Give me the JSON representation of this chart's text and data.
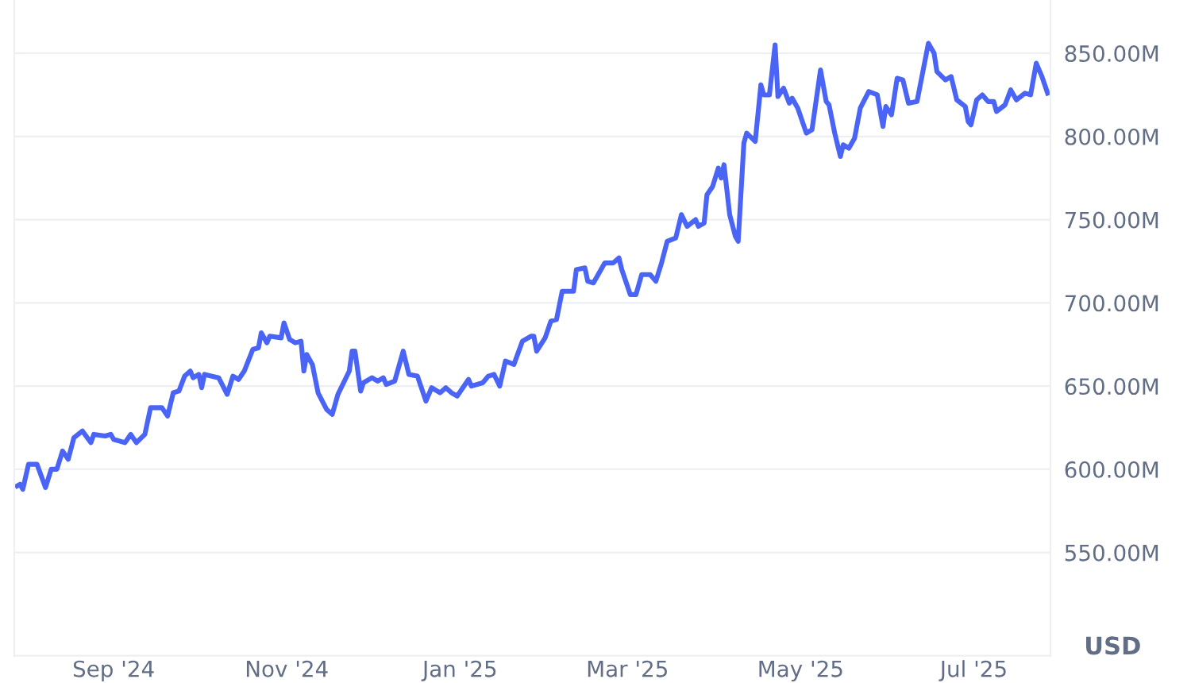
{
  "chart_data": {
    "type": "line",
    "ylabel": "USD",
    "xlim": [
      "2024-07-28",
      "2025-07-28"
    ],
    "xticks": [
      {
        "value": "2024-09-01",
        "label": "Sep '24"
      },
      {
        "value": "2024-11-01",
        "label": "Nov '24"
      },
      {
        "value": "2025-01-01",
        "label": "Jan '25"
      },
      {
        "value": "2025-03-01",
        "label": "Mar '25"
      },
      {
        "value": "2025-05-01",
        "label": "May '25"
      },
      {
        "value": "2025-07-01",
        "label": "Jul '25"
      }
    ],
    "ylim": [
      488,
      882
    ],
    "yticks": [
      {
        "value": 550,
        "label": "550.00M"
      },
      {
        "value": 600,
        "label": "600.00M"
      },
      {
        "value": 650,
        "label": "650.00M"
      },
      {
        "value": 700,
        "label": "700.00M"
      },
      {
        "value": 750,
        "label": "750.00M"
      },
      {
        "value": 800,
        "label": "800.00M"
      },
      {
        "value": 850,
        "label": "850.00M"
      }
    ],
    "grid": "y",
    "marker": "none",
    "line_style": "solid",
    "x": [
      "2024-07-29",
      "2024-07-30",
      "2024-07-31",
      "2024-08-02",
      "2024-08-05",
      "2024-08-08",
      "2024-08-10",
      "2024-08-12",
      "2024-08-14",
      "2024-08-16",
      "2024-08-18",
      "2024-08-21",
      "2024-08-24",
      "2024-08-25",
      "2024-08-29",
      "2024-08-31",
      "2024-09-01",
      "2024-09-05",
      "2024-09-07",
      "2024-09-09",
      "2024-09-12",
      "2024-09-14",
      "2024-09-18",
      "2024-09-20",
      "2024-09-22",
      "2024-09-24",
      "2024-09-26",
      "2024-09-28",
      "2024-09-29",
      "2024-10-01",
      "2024-10-02",
      "2024-10-03",
      "2024-10-08",
      "2024-10-11",
      "2024-10-13",
      "2024-10-15",
      "2024-10-17",
      "2024-10-20",
      "2024-10-22",
      "2024-10-23",
      "2024-10-25",
      "2024-10-26",
      "2024-10-30",
      "2024-10-31",
      "2024-11-02",
      "2024-11-04",
      "2024-11-06",
      "2024-11-07",
      "2024-11-08",
      "2024-11-10",
      "2024-11-12",
      "2024-11-15",
      "2024-11-17",
      "2024-11-19",
      "2024-11-23",
      "2024-11-24",
      "2024-11-25",
      "2024-11-27",
      "2024-11-28",
      "2024-12-01",
      "2024-12-03",
      "2024-12-05",
      "2024-12-06",
      "2024-12-09",
      "2024-12-12",
      "2024-12-14",
      "2024-12-17",
      "2024-12-20",
      "2024-12-22",
      "2024-12-25",
      "2024-12-27",
      "2024-12-29",
      "2024-12-31",
      "2025-01-04",
      "2025-01-05",
      "2025-01-09",
      "2025-01-11",
      "2025-01-13",
      "2025-01-15",
      "2025-01-17",
      "2025-01-20",
      "2025-01-23",
      "2025-01-26",
      "2025-01-27",
      "2025-01-28",
      "2025-01-31",
      "2025-02-02",
      "2025-02-04",
      "2025-02-06",
      "2025-02-10",
      "2025-02-11",
      "2025-02-14",
      "2025-02-15",
      "2025-02-17",
      "2025-02-21",
      "2025-02-24",
      "2025-02-26",
      "2025-02-27",
      "2025-03-02",
      "2025-03-04",
      "2025-03-06",
      "2025-03-09",
      "2025-03-11",
      "2025-03-13",
      "2025-03-15",
      "2025-03-18",
      "2025-03-20",
      "2025-03-22",
      "2025-03-25",
      "2025-03-26",
      "2025-03-28",
      "2025-03-29",
      "2025-03-31",
      "2025-04-02",
      "2025-04-03",
      "2025-04-04",
      "2025-04-06",
      "2025-04-08",
      "2025-04-09",
      "2025-04-11",
      "2025-04-12",
      "2025-04-15",
      "2025-04-17",
      "2025-04-18",
      "2025-04-20",
      "2025-04-22",
      "2025-04-23",
      "2025-04-25",
      "2025-04-27",
      "2025-04-28",
      "2025-04-30",
      "2025-05-03",
      "2025-05-05",
      "2025-05-08",
      "2025-05-10",
      "2025-05-11",
      "2025-05-13",
      "2025-05-15",
      "2025-05-16",
      "2025-05-18",
      "2025-05-20",
      "2025-05-22",
      "2025-05-25",
      "2025-05-28",
      "2025-05-30",
      "2025-05-31",
      "2025-06-02",
      "2025-06-04",
      "2025-06-06",
      "2025-06-08",
      "2025-06-11",
      "2025-06-15",
      "2025-06-17",
      "2025-06-18",
      "2025-06-21",
      "2025-06-23",
      "2025-06-25",
      "2025-06-28",
      "2025-06-29",
      "2025-06-30",
      "2025-07-02",
      "2025-07-04",
      "2025-07-06",
      "2025-07-08",
      "2025-07-09",
      "2025-07-12",
      "2025-07-14",
      "2025-07-16",
      "2025-07-19",
      "2025-07-21",
      "2025-07-23",
      "2025-07-25",
      "2025-07-27"
    ],
    "series": [
      {
        "color": "#4a64f5",
        "values": [
          590,
          591,
          588,
          603,
          603,
          589,
          600,
          600,
          611,
          606,
          619,
          623,
          616,
          621,
          620,
          621,
          618,
          616,
          621,
          616,
          621,
          637,
          637,
          632,
          646,
          647,
          656,
          659,
          655,
          657,
          649,
          657,
          655,
          645,
          656,
          654,
          659,
          672,
          673,
          682,
          676,
          680,
          679,
          688,
          678,
          676,
          677,
          659,
          669,
          663,
          646,
          636,
          633,
          645,
          659,
          671,
          671,
          647,
          652,
          655,
          653,
          655,
          651,
          653,
          671,
          657,
          656,
          641,
          649,
          646,
          649,
          646,
          644,
          654,
          650,
          652,
          656,
          657,
          650,
          665,
          663,
          677,
          680,
          680,
          671,
          679,
          689,
          690,
          707,
          707,
          720,
          721,
          713,
          712,
          724,
          724,
          727,
          720,
          705,
          705,
          717,
          717,
          713,
          724,
          737,
          739,
          753,
          746,
          750,
          746,
          748,
          765,
          770,
          781,
          775,
          783,
          753,
          740,
          737,
          796,
          802,
          797,
          831,
          825,
          825,
          855,
          824,
          829,
          820,
          823,
          817,
          802,
          804,
          840,
          821,
          819,
          802,
          788,
          795,
          793,
          799,
          817,
          827,
          825,
          806,
          818,
          813,
          835,
          834,
          820,
          821,
          856,
          850,
          839,
          834,
          836,
          822,
          818,
          809,
          807,
          822,
          825,
          821,
          821,
          815,
          819,
          828,
          822,
          826,
          825,
          844,
          836,
          826
        ]
      }
    ]
  }
}
